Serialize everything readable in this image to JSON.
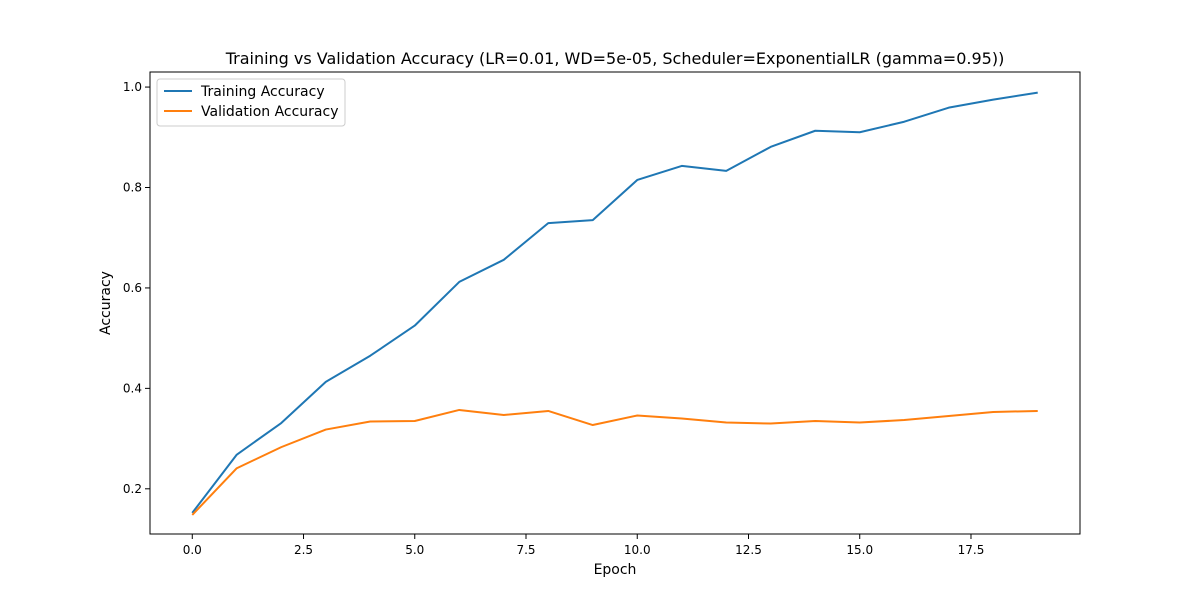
{
  "chart_data": {
    "type": "line",
    "title": "Training vs Validation Accuracy (LR=0.01, WD=5e-05, Scheduler=ExponentialLR (gamma=0.95))",
    "xlabel": "Epoch",
    "ylabel": "Accuracy",
    "xlim": [
      -0.95,
      19.95
    ],
    "ylim": [
      0.11,
      1.03
    ],
    "xticks": [
      0.0,
      2.5,
      5.0,
      7.5,
      10.0,
      12.5,
      15.0,
      17.5
    ],
    "xtick_labels": [
      "0.0",
      "2.5",
      "5.0",
      "7.5",
      "10.0",
      "12.5",
      "15.0",
      "17.5"
    ],
    "yticks": [
      0.2,
      0.4,
      0.6,
      0.8,
      1.0
    ],
    "ytick_labels": [
      "0.2",
      "0.4",
      "0.6",
      "0.8",
      "1.0"
    ],
    "grid": false,
    "legend_position": "upper left",
    "x": [
      0,
      1,
      2,
      3,
      4,
      5,
      6,
      7,
      8,
      9,
      10,
      11,
      12,
      13,
      14,
      15,
      16,
      17,
      18,
      19
    ],
    "series": [
      {
        "name": "Training Accuracy",
        "color": "#1f77b4",
        "values": [
          0.152,
          0.268,
          0.331,
          0.413,
          0.465,
          0.525,
          0.612,
          0.656,
          0.729,
          0.735,
          0.815,
          0.843,
          0.833,
          0.881,
          0.913,
          0.91,
          0.931,
          0.959,
          0.975,
          0.989
        ]
      },
      {
        "name": "Validation Accuracy",
        "color": "#ff7f0e",
        "values": [
          0.148,
          0.241,
          0.283,
          0.318,
          0.334,
          0.335,
          0.357,
          0.347,
          0.355,
          0.327,
          0.346,
          0.34,
          0.332,
          0.33,
          0.335,
          0.332,
          0.337,
          0.345,
          0.353,
          0.355
        ]
      }
    ]
  }
}
